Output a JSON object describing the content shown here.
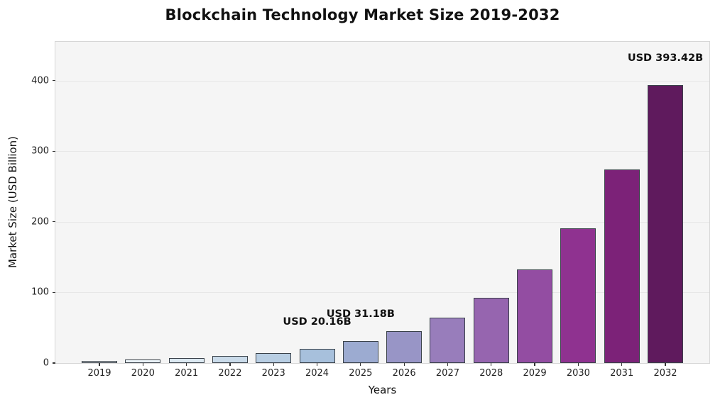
{
  "title": "Blockchain Technology Market Size 2019-2032",
  "chart_data": {
    "type": "bar",
    "title": "Blockchain Technology Market Size 2019-2032",
    "xlabel": "Years",
    "ylabel": "Market Size (USD Billion)",
    "categories": [
      "2019",
      "2020",
      "2021",
      "2022",
      "2023",
      "2024",
      "2025",
      "2026",
      "2027",
      "2028",
      "2029",
      "2030",
      "2031",
      "2032"
    ],
    "values": [
      3.29,
      4.73,
      6.8,
      9.77,
      14.03,
      20.16,
      31.18,
      44.79,
      64.34,
      92.42,
      132.77,
      190.72,
      273.97,
      393.42
    ],
    "bar_colors": [
      "#f8fcfd",
      "#ebf3f8",
      "#dce9f2",
      "#cadbea",
      "#b8cee3",
      "#a7c0dc",
      "#9cabd1",
      "#9895c6",
      "#987dbb",
      "#9665af",
      "#934da2",
      "#8f3290",
      "#7c2278",
      "#5f1a5d"
    ],
    "bar_edge_color": "#3a424a",
    "annotations": [
      {
        "category": "2024",
        "text": "USD 20.16B"
      },
      {
        "category": "2025",
        "text": "USD 31.18B"
      },
      {
        "category": "2032",
        "text": "USD 393.42B"
      }
    ],
    "y_ticks": [
      0,
      100,
      200,
      300,
      400
    ],
    "ylim": [
      0,
      455
    ],
    "grid": "horizontal",
    "legend": "none",
    "plot_bg_color": "#f5f5f5",
    "grid_color": "#e7e7e7",
    "figure_bg_color": "#ffffff"
  }
}
